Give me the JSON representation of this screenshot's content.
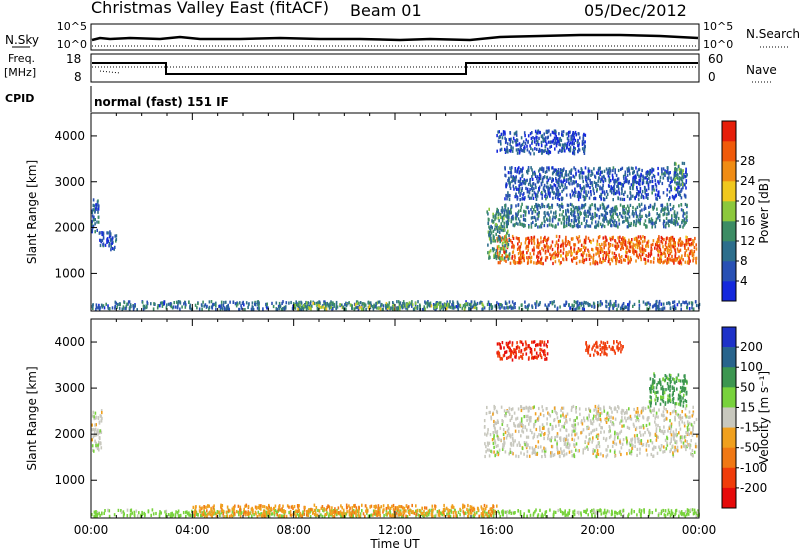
{
  "header": {
    "title": "Christmas Valley East (fitACF)",
    "beam": "Beam 01",
    "date": "05/Dec/2012"
  },
  "summary": {
    "nsky_label": "N.Sky",
    "nsky_tick_top": "10^5",
    "nsky_tick_bottom": "10^0",
    "nsearch_label": "N.Search",
    "nsearch_tick_top": "10^5",
    "nsearch_tick_bottom": "10^0",
    "freq_label": "Freq.",
    "freq_unit": "[MHz]",
    "freq_tick_top": "18",
    "freq_tick_bottom": "8",
    "nave_label": "Nave",
    "nave_tick_top": "60",
    "nave_tick_bottom": "0",
    "cpid_label": "CPID",
    "cpid_value": "normal (fast) 151 IF"
  },
  "chart_data": [
    {
      "type": "heatmap",
      "name": "power",
      "ylabel": "Slant Range [km]",
      "yticks": [
        "1000",
        "2000",
        "3000",
        "4000"
      ],
      "ylim": [
        180,
        4500
      ],
      "xlim": [
        "00:00",
        "24:00"
      ],
      "colorbar_label": "Power [dB]",
      "colorbar_ticks": [
        "4",
        "8",
        "12",
        "16",
        "20",
        "24",
        "28"
      ],
      "colorbar_range": [
        0,
        32
      ],
      "colorbar_colors": [
        "#1428dc",
        "#2850b4",
        "#2d6e8c",
        "#3c8c64",
        "#8cc83c",
        "#f0c81e",
        "#f08c14",
        "#f05a0a",
        "#e61e0a"
      ],
      "regions": [
        {
          "t": [
            16.0,
            23.9
          ],
          "r": [
            1200,
            1800
          ],
          "level": 26
        },
        {
          "t": [
            15.6,
            16.5
          ],
          "r": [
            1300,
            2400
          ],
          "level": 12
        },
        {
          "t": [
            16.2,
            23.5
          ],
          "r": [
            2000,
            2500
          ],
          "level": 9
        },
        {
          "t": [
            16.3,
            23.5
          ],
          "r": [
            2600,
            3300
          ],
          "level": 6
        },
        {
          "t": [
            16.0,
            19.5
          ],
          "r": [
            3600,
            4100
          ],
          "level": 5
        },
        {
          "t": [
            23.0,
            23.4
          ],
          "r": [
            2800,
            3400
          ],
          "level": 13
        },
        {
          "t": [
            0.0,
            0.3
          ],
          "r": [
            1900,
            2600
          ],
          "level": 7
        },
        {
          "t": [
            0.3,
            1.0
          ],
          "r": [
            1500,
            1900
          ],
          "level": 6
        },
        {
          "t": [
            0.0,
            24.0
          ],
          "r": [
            200,
            380
          ],
          "level": 8
        },
        {
          "t": [
            8.0,
            15.5
          ],
          "r": [
            200,
            350
          ],
          "level": 14
        }
      ]
    },
    {
      "type": "heatmap",
      "name": "velocity",
      "ylabel": "Slant Range [km]",
      "yticks": [
        "1000",
        "2000",
        "3000",
        "4000"
      ],
      "ylim": [
        180,
        4500
      ],
      "xlim": [
        "00:00",
        "24:00"
      ],
      "xticks": [
        "00:00",
        "04:00",
        "08:00",
        "12:00",
        "16:00",
        "20:00",
        "00:00"
      ],
      "xlabel": "Time UT",
      "colorbar_label": "Velocity [m s⁻¹]",
      "colorbar_ticks": [
        "200",
        "100",
        "50",
        "15",
        "-15",
        "-50",
        "-100",
        "-200"
      ],
      "colorbar_colors": [
        "#1e32c8",
        "#28648c",
        "#3c9650",
        "#78d23c",
        "#c8c8be",
        "#f0a01e",
        "#f07814",
        "#f03c0a",
        "#e60a0a"
      ],
      "regions": [
        {
          "t": [
            15.5,
            23.9
          ],
          "r": [
            1500,
            2600
          ],
          "velocity": 0
        },
        {
          "t": [
            16.0,
            18.0
          ],
          "r": [
            3600,
            4000
          ],
          "velocity": -200
        },
        {
          "t": [
            19.5,
            21.0
          ],
          "r": [
            3700,
            4000
          ],
          "velocity": -150
        },
        {
          "t": [
            0.0,
            0.4
          ],
          "r": [
            1600,
            2500
          ],
          "velocity": 0
        },
        {
          "t": [
            0.0,
            24.0
          ],
          "r": [
            200,
            350
          ],
          "velocity": 30
        },
        {
          "t": [
            4.0,
            16.0
          ],
          "r": [
            200,
            450
          ],
          "velocity": -40
        },
        {
          "t": [
            22.0,
            23.5
          ],
          "r": [
            2600,
            3300
          ],
          "velocity": 60
        }
      ]
    }
  ]
}
